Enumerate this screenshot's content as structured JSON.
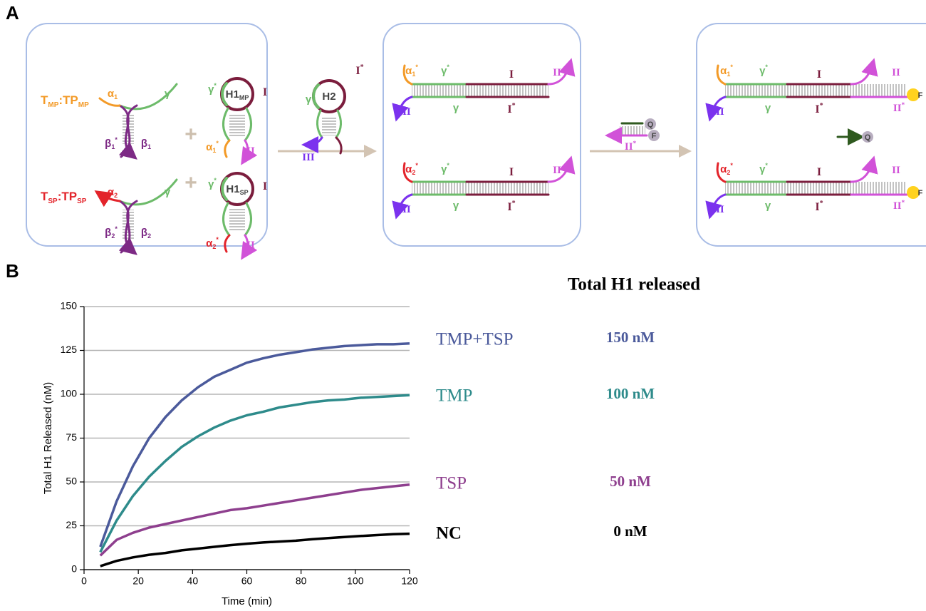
{
  "panel_a": {
    "letter": "A",
    "labels": [
      [
        {
          "text": "T",
          "sub": "MP"
        },
        {
          "text": ":TP",
          "sub": "MP"
        }
      ],
      [
        {
          "text": "T",
          "sub": "SP"
        },
        {
          "text": ":TP",
          "sub": "SP"
        }
      ],
      [
        {
          "text": "α",
          "sub": "1"
        }
      ],
      [
        {
          "text": "γ"
        }
      ],
      [
        {
          "text": "β",
          "sub": "1",
          "sup": "*"
        }
      ],
      [
        {
          "text": "β",
          "sub": "1"
        }
      ],
      [
        {
          "text": "+"
        }
      ],
      [
        {
          "text": "γ",
          "sup": "*"
        }
      ],
      [
        {
          "text": "H1",
          "sub": "MP"
        }
      ],
      [
        {
          "text": "I"
        }
      ],
      [
        {
          "text": "α",
          "sub": "1",
          "sup": "*"
        }
      ],
      [
        {
          "text": "II"
        }
      ],
      [
        {
          "text": "α",
          "sub": "2"
        }
      ],
      [
        {
          "text": "γ"
        }
      ],
      [
        {
          "text": "β",
          "sub": "2",
          "sup": "*"
        }
      ],
      [
        {
          "text": "β",
          "sub": "2"
        }
      ],
      [
        {
          "text": "+"
        }
      ],
      [
        {
          "text": "γ",
          "sup": "*"
        }
      ],
      [
        {
          "text": "H1",
          "sub": "SP"
        }
      ],
      [
        {
          "text": "I"
        }
      ],
      [
        {
          "text": "α",
          "sub": "2",
          "sup": "*"
        }
      ],
      [
        {
          "text": "II"
        }
      ],
      [
        {
          "text": "γ"
        }
      ],
      [
        {
          "text": "H2"
        }
      ],
      [
        {
          "text": "I",
          "sup": "*"
        }
      ],
      [
        {
          "text": "III"
        }
      ],
      [
        {
          "text": "α",
          "sub": "1",
          "sup": "*"
        }
      ],
      [
        {
          "text": "γ",
          "sup": "*"
        }
      ],
      [
        {
          "text": "I"
        }
      ],
      [
        {
          "text": "II"
        }
      ],
      [
        {
          "text": "III"
        }
      ],
      [
        {
          "text": "γ"
        }
      ],
      [
        {
          "text": "I",
          "sup": "*"
        }
      ],
      [
        {
          "text": "α",
          "sub": "2",
          "sup": "*"
        }
      ],
      [
        {
          "text": "γ",
          "sup": "*"
        }
      ],
      [
        {
          "text": "I"
        }
      ],
      [
        {
          "text": "II"
        }
      ],
      [
        {
          "text": "III"
        }
      ],
      [
        {
          "text": "γ"
        }
      ],
      [
        {
          "text": "I",
          "sup": "*"
        }
      ],
      [
        {
          "text": "Q"
        }
      ],
      [
        {
          "text": "F"
        }
      ],
      [
        {
          "text": "II",
          "sup": "*"
        }
      ],
      [
        {
          "text": "α",
          "sub": "1",
          "sup": "*"
        }
      ],
      [
        {
          "text": "γ",
          "sup": "*"
        }
      ],
      [
        {
          "text": "I"
        }
      ],
      [
        {
          "text": "II"
        }
      ],
      [
        {
          "text": "III"
        }
      ],
      [
        {
          "text": "γ"
        }
      ],
      [
        {
          "text": "I",
          "sup": "*"
        }
      ],
      [
        {
          "text": "II",
          "sup": "*"
        }
      ],
      [
        {
          "text": "F"
        }
      ],
      [
        {
          "text": "Q"
        }
      ],
      [
        {
          "text": "α",
          "sub": "2",
          "sup": "*"
        }
      ],
      [
        {
          "text": "γ",
          "sup": "*"
        }
      ],
      [
        {
          "text": "I"
        }
      ],
      [
        {
          "text": "II"
        }
      ],
      [
        {
          "text": "III"
        }
      ],
      [
        {
          "text": "γ"
        }
      ],
      [
        {
          "text": "I",
          "sup": "*"
        }
      ],
      [
        {
          "text": "II",
          "sup": "*"
        }
      ],
      [
        {
          "text": "F"
        }
      ]
    ]
  },
  "panel_b": {
    "letter": "B"
  },
  "chart_data": {
    "type": "line",
    "x_label": "Time (min)",
    "y_label": "Total H1 Released (nM)",
    "table_title": "Total H1 released",
    "x": [
      6,
      12,
      18,
      24,
      30,
      36,
      42,
      48,
      54,
      60,
      66,
      72,
      78,
      84,
      90,
      96,
      102,
      108,
      114,
      120
    ],
    "series": [
      {
        "name": "TMP+TSP",
        "color": "#4b5a9b",
        "total": "150 nM",
        "values": [
          13,
          39,
          59,
          75,
          87,
          96.5,
          104,
          110,
          114,
          118,
          120.5,
          122.5,
          124,
          125.5,
          126.5,
          127.5,
          128,
          128.5,
          128.5,
          129
        ]
      },
      {
        "name": "TMP",
        "color": "#2e8b8b",
        "total": "100 nM",
        "values": [
          10,
          28,
          42,
          53,
          62,
          70,
          76,
          81,
          85,
          88,
          90,
          92.5,
          94,
          95.5,
          96.5,
          97,
          98,
          98.5,
          99,
          99.5
        ]
      },
      {
        "name": "TSP",
        "color": "#8e3f8e",
        "total": "50 nM",
        "values": [
          8,
          17,
          21,
          24,
          26,
          28,
          30,
          32,
          34,
          35,
          36.5,
          38,
          39.5,
          41,
          42.5,
          44,
          45.5,
          46.5,
          47.5,
          48.5
        ]
      },
      {
        "name": "NC",
        "color": "#000000",
        "total": "0 nM",
        "values": [
          2,
          5,
          7,
          8.5,
          9.5,
          11,
          12,
          13,
          14,
          14.8,
          15.5,
          16,
          16.5,
          17.3,
          18,
          18.6,
          19.2,
          19.7,
          20.2,
          20.5
        ]
      }
    ],
    "xlim": [
      0,
      120
    ],
    "xticks": [
      0,
      20,
      40,
      60,
      80,
      100,
      120
    ],
    "ylim": [
      0,
      150
    ],
    "yticks": [
      0,
      25,
      50,
      75,
      100,
      125,
      150
    ],
    "grid": true
  }
}
